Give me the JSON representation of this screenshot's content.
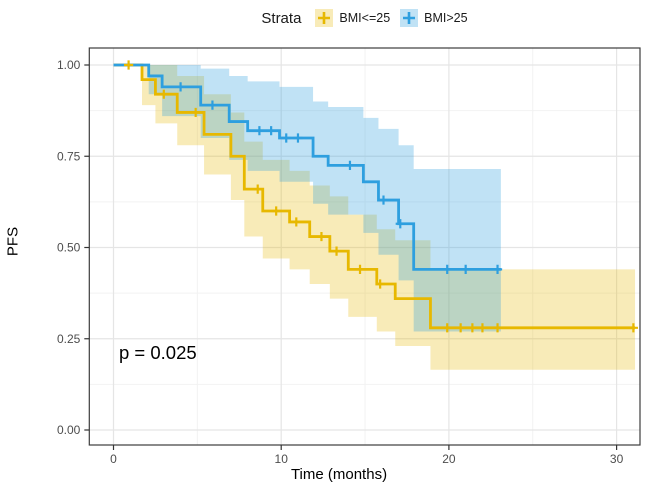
{
  "legend": {
    "title": "Strata",
    "items": [
      {
        "label": "BMI<=25",
        "line_color": "#E7B800",
        "band_color": "rgba(231,184,0,0.28)"
      },
      {
        "label": "BMI>25",
        "line_color": "#2E9FDF",
        "band_color": "rgba(46,159,223,0.30)"
      }
    ]
  },
  "annotation": {
    "p_value": "p = 0.025"
  },
  "axes": {
    "x": {
      "title": "Time (months)",
      "ticks": [
        "0",
        "10",
        "20",
        "30"
      ],
      "tick_values": [
        0,
        10,
        20,
        30
      ],
      "minor_values": [
        5,
        15,
        25
      ]
    },
    "y": {
      "title": "PFS",
      "ticks": [
        "0.00",
        "0.25",
        "0.50",
        "0.75",
        "1.00"
      ],
      "tick_values": [
        0,
        0.25,
        0.5,
        0.75,
        1.0
      ],
      "minor_values": [
        0.125,
        0.375,
        0.625,
        0.875
      ]
    }
  },
  "chart_data": {
    "type": "line",
    "subtype": "kaplan-meier-step",
    "title": "",
    "xlabel": "Time (months)",
    "ylabel": "PFS",
    "xlim": [
      -1.4,
      31.4
    ],
    "ylim": [
      -0.04,
      1.045
    ],
    "grid": true,
    "legend_position": "top",
    "p_value": 0.025,
    "series": [
      {
        "name": "BMI<=25",
        "color": "#E7B800",
        "band_color": "rgba(231,184,0,0.28)",
        "end_t": 31.1,
        "steps": [
          [
            0.0,
            1.0,
            1.0,
            1.0
          ],
          [
            1.7,
            0.96,
            0.89,
            1.0
          ],
          [
            2.5,
            0.92,
            0.84,
            1.0
          ],
          [
            3.8,
            0.87,
            0.78,
            0.97
          ],
          [
            5.4,
            0.81,
            0.7,
            0.92
          ],
          [
            7.0,
            0.75,
            0.63,
            0.87
          ],
          [
            7.8,
            0.66,
            0.53,
            0.79
          ],
          [
            8.9,
            0.6,
            0.47,
            0.74
          ],
          [
            10.5,
            0.57,
            0.44,
            0.71
          ],
          [
            11.7,
            0.53,
            0.4,
            0.67
          ],
          [
            12.9,
            0.49,
            0.36,
            0.64
          ],
          [
            14.0,
            0.44,
            0.31,
            0.59
          ],
          [
            15.7,
            0.4,
            0.27,
            0.55
          ],
          [
            16.8,
            0.36,
            0.23,
            0.52
          ],
          [
            18.9,
            0.28,
            0.165,
            0.44
          ]
        ],
        "censors": [
          [
            0.9,
            1.0
          ],
          [
            3.0,
            0.92
          ],
          [
            4.9,
            0.87
          ],
          [
            8.6,
            0.66
          ],
          [
            9.7,
            0.6
          ],
          [
            10.9,
            0.57
          ],
          [
            12.4,
            0.53
          ],
          [
            13.3,
            0.49
          ],
          [
            14.7,
            0.44
          ],
          [
            15.9,
            0.4
          ],
          [
            19.9,
            0.28
          ],
          [
            20.7,
            0.28
          ],
          [
            21.4,
            0.28
          ],
          [
            22.0,
            0.28
          ],
          [
            22.9,
            0.28
          ],
          [
            31.0,
            0.28
          ]
        ]
      },
      {
        "name": "BMI>25",
        "color": "#2E9FDF",
        "band_color": "rgba(46,159,223,0.30)",
        "end_t": 23.1,
        "steps": [
          [
            0.0,
            1.0,
            1.0,
            1.0
          ],
          [
            2.1,
            0.97,
            0.92,
            1.0
          ],
          [
            2.9,
            0.94,
            0.86,
            1.0
          ],
          [
            5.2,
            0.89,
            0.8,
            0.99
          ],
          [
            6.9,
            0.845,
            0.74,
            0.97
          ],
          [
            8.0,
            0.82,
            0.71,
            0.955
          ],
          [
            9.9,
            0.8,
            0.68,
            0.94
          ],
          [
            11.9,
            0.75,
            0.62,
            0.9
          ],
          [
            12.8,
            0.725,
            0.59,
            0.885
          ],
          [
            14.9,
            0.68,
            0.54,
            0.855
          ],
          [
            15.8,
            0.63,
            0.48,
            0.825
          ],
          [
            17.0,
            0.565,
            0.41,
            0.78
          ],
          [
            17.9,
            0.44,
            0.27,
            0.715
          ]
        ],
        "censors": [
          [
            4.0,
            0.94
          ],
          [
            5.9,
            0.89
          ],
          [
            8.7,
            0.82
          ],
          [
            9.4,
            0.82
          ],
          [
            10.3,
            0.8
          ],
          [
            11.0,
            0.8
          ],
          [
            14.1,
            0.725
          ],
          [
            16.1,
            0.63
          ],
          [
            17.1,
            0.565
          ],
          [
            19.9,
            0.44
          ],
          [
            21.0,
            0.44
          ],
          [
            22.9,
            0.44
          ]
        ]
      }
    ]
  }
}
